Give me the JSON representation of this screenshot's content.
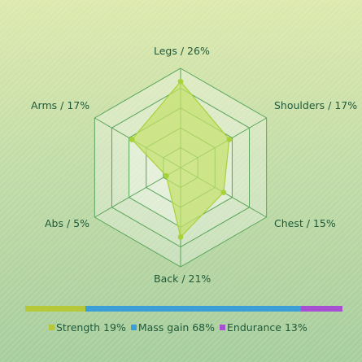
{
  "chart_data": [
    {
      "type": "radar",
      "axes": [
        {
          "label": "Legs / 26%",
          "value": 26
        },
        {
          "label": "Shoulders / 17%",
          "value": 17
        },
        {
          "label": "Chest / 15%",
          "value": 15
        },
        {
          "label": "Back / 21%",
          "value": 21
        },
        {
          "label": "Abs / 5%",
          "value": 5
        },
        {
          "label": "Arms / 17%",
          "value": 17
        }
      ],
      "rmax": 30,
      "rings": 5,
      "fill_color": "#c4e069",
      "stroke_color": "#a8d23a",
      "grid_color": "#5aa55a"
    },
    {
      "type": "stacked-bar",
      "segments": [
        {
          "name": "Strength",
          "value": 19,
          "label": "Strength 19%",
          "color": "#b5c83a"
        },
        {
          "name": "Mass gain",
          "value": 68,
          "label": "Mass gain 68%",
          "color": "#3b9ed6"
        },
        {
          "name": "Endurance",
          "value": 13,
          "label": "Endurance 13%",
          "color": "#a64fd3"
        }
      ]
    }
  ]
}
